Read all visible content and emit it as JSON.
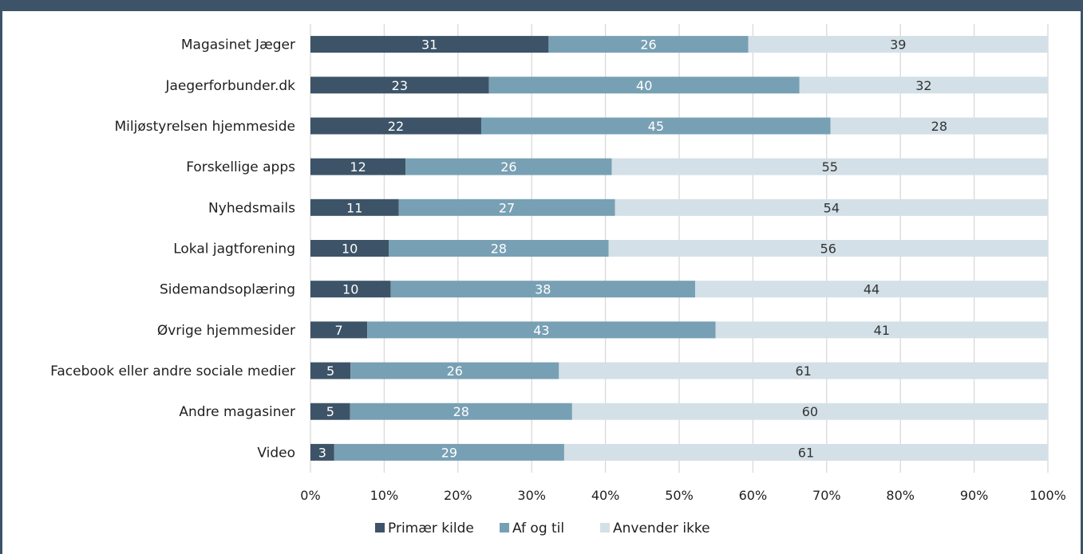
{
  "chart_data": {
    "type": "bar",
    "orientation": "horizontal",
    "stacked": "percent",
    "categories": [
      "Magasinet Jæger",
      "Jaegerforbunder.dk",
      "Miljøstyrelsen hjemmeside",
      "Forskellige apps",
      "Nyhedsmails",
      "Lokal jagtforening",
      "Sidemandsoplæring",
      "Øvrige hjemmesider",
      "Facebook eller andre sociale medier",
      "Andre magasiner",
      "Video"
    ],
    "series": [
      {
        "name": "Primær kilde",
        "color": "#3d5468",
        "label_color": "#ffffff",
        "values": [
          31,
          23,
          22,
          12,
          11,
          10,
          10,
          7,
          5,
          5,
          3
        ]
      },
      {
        "name": "Af og til",
        "color": "#78a0b4",
        "label_color": "#ffffff",
        "values": [
          26,
          40,
          45,
          26,
          27,
          28,
          38,
          43,
          26,
          28,
          29
        ]
      },
      {
        "name": "Anvender ikke",
        "color": "#d3e0e7",
        "label_color": "#333333",
        "values": [
          39,
          32,
          28,
          55,
          54,
          56,
          44,
          41,
          61,
          60,
          61
        ]
      }
    ],
    "xlim": [
      0,
      100
    ],
    "xticks": [
      "0%",
      "10%",
      "20%",
      "30%",
      "40%",
      "50%",
      "60%",
      "70%",
      "80%",
      "90%",
      "100%"
    ],
    "grid": "vertical",
    "legend": "bottom-center",
    "title": "",
    "xlabel": "",
    "ylabel": ""
  }
}
